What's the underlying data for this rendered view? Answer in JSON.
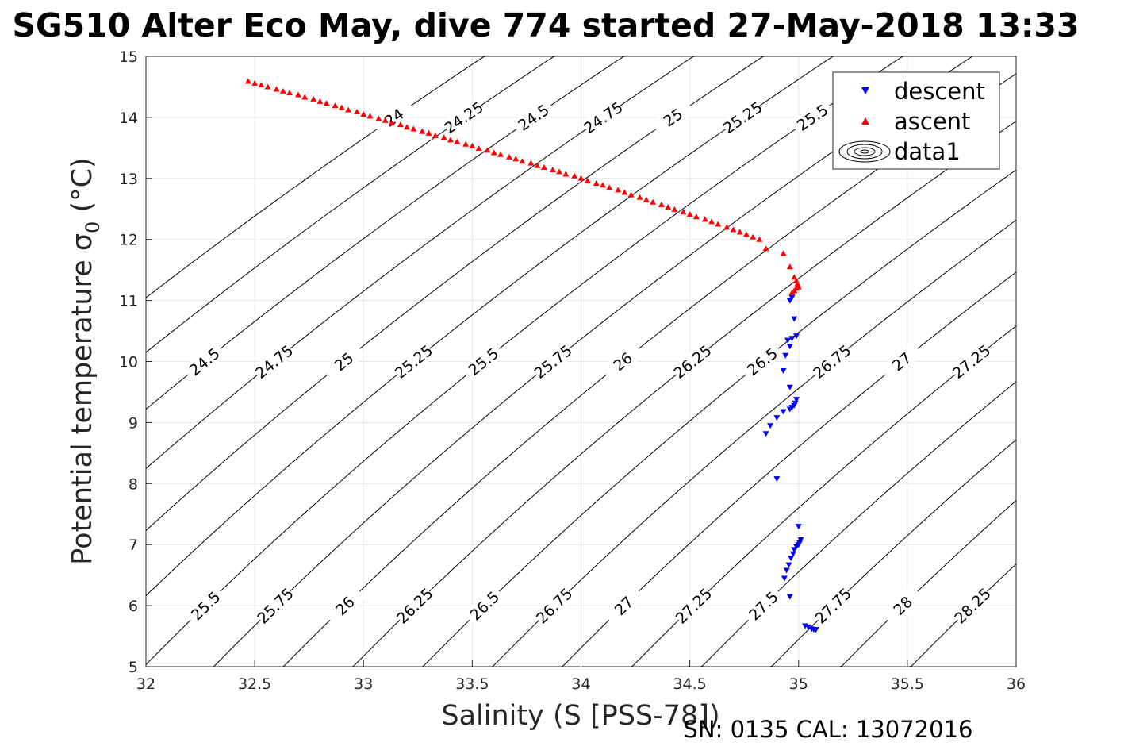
{
  "chart_data": {
    "type": "scatter",
    "title": "SG510 Alter Eco May, dive 774 started 27-May-2018 13:33",
    "xlabel": "Salinity (S [PSS-78])",
    "ylabel": "Potential temperature σ",
    "ylabel_sub": "0",
    "ylabel_unit": " (°C)",
    "xlim": [
      32,
      36
    ],
    "ylim": [
      5,
      15
    ],
    "x_ticks": [
      "32",
      "32.5",
      "33",
      "33.5",
      "34",
      "34.5",
      "35",
      "35.5",
      "36"
    ],
    "y_ticks": [
      "5",
      "6",
      "7",
      "8",
      "9",
      "10",
      "11",
      "12",
      "13",
      "14",
      "15"
    ],
    "grid": true,
    "legend_position": "top-right",
    "legend": [
      "descent",
      "ascent",
      "data1"
    ],
    "footnote": "SN: 0135  CAL: 13072016",
    "contour_levels": [
      "24",
      "24.25",
      "24.5",
      "24.75",
      "25",
      "25.25",
      "25.5",
      "25.75",
      "26",
      "26.25",
      "26.5",
      "26.75",
      "27",
      "27.25",
      "27.5",
      "27.75",
      "28",
      "28.25"
    ],
    "series": [
      {
        "name": "descent",
        "marker": "triangle-down",
        "color": "#0000ff",
        "points": [
          [
            34.96,
            11.0
          ],
          [
            34.97,
            11.05
          ],
          [
            34.98,
            10.7
          ],
          [
            34.99,
            10.42
          ],
          [
            34.97,
            10.38
          ],
          [
            34.95,
            10.35
          ],
          [
            34.96,
            10.25
          ],
          [
            34.94,
            10.1
          ],
          [
            34.93,
            9.85
          ],
          [
            34.96,
            9.58
          ],
          [
            34.99,
            9.38
          ],
          [
            34.985,
            9.32
          ],
          [
            34.98,
            9.28
          ],
          [
            34.97,
            9.25
          ],
          [
            34.96,
            9.22
          ],
          [
            34.93,
            9.18
          ],
          [
            34.9,
            9.08
          ],
          [
            34.87,
            8.95
          ],
          [
            34.85,
            8.82
          ],
          [
            34.9,
            8.08
          ],
          [
            35.0,
            7.3
          ],
          [
            35.01,
            7.08
          ],
          [
            35.005,
            7.03
          ],
          [
            35.0,
            7.0
          ],
          [
            34.99,
            6.97
          ],
          [
            34.98,
            6.92
          ],
          [
            34.975,
            6.85
          ],
          [
            34.965,
            6.78
          ],
          [
            34.955,
            6.67
          ],
          [
            34.945,
            6.58
          ],
          [
            34.935,
            6.45
          ],
          [
            34.96,
            6.15
          ],
          [
            35.03,
            5.67
          ],
          [
            35.045,
            5.65
          ],
          [
            35.06,
            5.62
          ],
          [
            35.07,
            5.61
          ],
          [
            35.08,
            5.61
          ]
        ]
      },
      {
        "name": "ascent",
        "marker": "triangle-up",
        "color": "#ff0000",
        "points": [
          [
            32.47,
            14.59
          ],
          [
            32.5,
            14.56
          ],
          [
            32.53,
            14.53
          ],
          [
            32.56,
            14.5
          ],
          [
            32.6,
            14.46
          ],
          [
            32.63,
            14.43
          ],
          [
            32.66,
            14.4
          ],
          [
            32.7,
            14.37
          ],
          [
            32.73,
            14.33
          ],
          [
            32.77,
            14.3
          ],
          [
            32.8,
            14.26
          ],
          [
            32.83,
            14.23
          ],
          [
            32.87,
            14.19
          ],
          [
            32.9,
            14.16
          ],
          [
            32.93,
            14.12
          ],
          [
            32.97,
            14.09
          ],
          [
            33.0,
            14.05
          ],
          [
            33.03,
            14.02
          ],
          [
            33.07,
            13.98
          ],
          [
            33.1,
            13.95
          ],
          [
            33.13,
            13.91
          ],
          [
            33.17,
            13.88
          ],
          [
            33.2,
            13.84
          ],
          [
            33.23,
            13.81
          ],
          [
            33.27,
            13.77
          ],
          [
            33.3,
            13.74
          ],
          [
            33.33,
            13.7
          ],
          [
            33.37,
            13.67
          ],
          [
            33.4,
            13.63
          ],
          [
            33.43,
            13.6
          ],
          [
            33.47,
            13.56
          ],
          [
            33.5,
            13.53
          ],
          [
            33.53,
            13.49
          ],
          [
            33.57,
            13.46
          ],
          [
            33.6,
            13.42
          ],
          [
            33.63,
            13.39
          ],
          [
            33.67,
            13.35
          ],
          [
            33.7,
            13.32
          ],
          [
            33.73,
            13.28
          ],
          [
            33.77,
            13.25
          ],
          [
            33.8,
            13.21
          ],
          [
            33.83,
            13.18
          ],
          [
            33.87,
            13.14
          ],
          [
            33.9,
            13.11
          ],
          [
            33.93,
            13.07
          ],
          [
            33.97,
            13.04
          ],
          [
            34.0,
            13.0
          ],
          [
            34.03,
            12.96
          ],
          [
            34.07,
            12.92
          ],
          [
            34.1,
            12.89
          ],
          [
            34.13,
            12.85
          ],
          [
            34.17,
            12.81
          ],
          [
            34.2,
            12.77
          ],
          [
            34.23,
            12.73
          ],
          [
            34.27,
            12.69
          ],
          [
            34.3,
            12.65
          ],
          [
            34.33,
            12.61
          ],
          [
            34.37,
            12.57
          ],
          [
            34.4,
            12.53
          ],
          [
            34.43,
            12.49
          ],
          [
            34.47,
            12.45
          ],
          [
            34.5,
            12.41
          ],
          [
            34.53,
            12.37
          ],
          [
            34.57,
            12.33
          ],
          [
            34.6,
            12.29
          ],
          [
            34.63,
            12.25
          ],
          [
            34.67,
            12.2
          ],
          [
            34.7,
            12.16
          ],
          [
            34.73,
            12.12
          ],
          [
            34.76,
            12.08
          ],
          [
            34.79,
            12.04
          ],
          [
            34.82,
            12.0
          ],
          [
            34.85,
            11.85
          ],
          [
            34.93,
            11.77
          ],
          [
            34.96,
            11.55
          ],
          [
            34.98,
            11.38
          ],
          [
            34.99,
            11.32
          ],
          [
            34.995,
            11.27
          ],
          [
            35.0,
            11.22
          ],
          [
            34.99,
            11.2
          ],
          [
            34.98,
            11.16
          ],
          [
            34.97,
            11.13
          ]
        ]
      }
    ]
  },
  "colors": {
    "descent": "#0000ff",
    "ascent": "#ff0000",
    "grid": "#e6e6e6",
    "contour": "#000000"
  }
}
